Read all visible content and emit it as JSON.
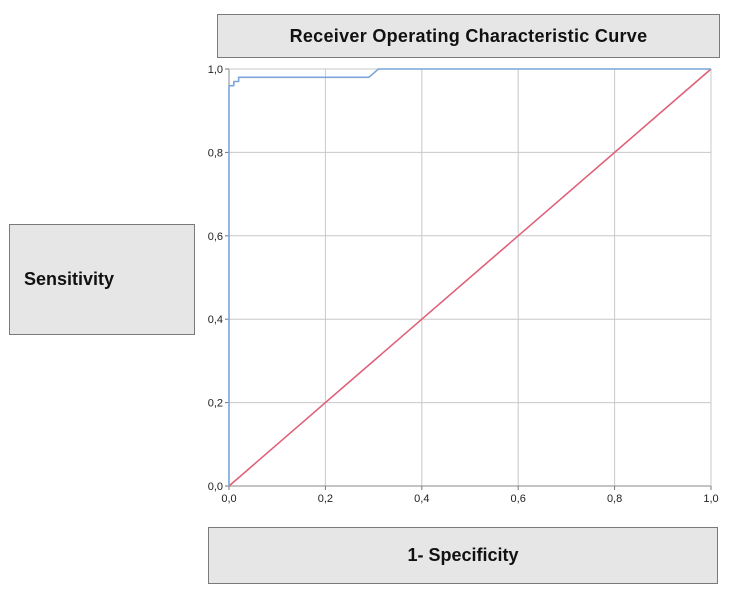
{
  "chart_data": {
    "type": "line",
    "title": "Receiver Operating Characteristic Curve",
    "xlabel": "1- Specificity",
    "ylabel": "Sensitivity",
    "xlim": [
      0,
      1
    ],
    "ylim": [
      0,
      1
    ],
    "x_ticks": [
      "0,0",
      "0,2",
      "0,4",
      "0,6",
      "0,8",
      "1,0"
    ],
    "y_ticks": [
      "0,0",
      "0,2",
      "0,4",
      "0,6",
      "0,8",
      "1,0"
    ],
    "grid": true,
    "series": [
      {
        "color": "#7aa6d8",
        "points": [
          [
            0,
            0
          ],
          [
            0,
            0.96
          ],
          [
            0.01,
            0.96
          ],
          [
            0.01,
            0.97
          ],
          [
            0.02,
            0.97
          ],
          [
            0.02,
            0.98
          ],
          [
            0.05,
            0.98
          ],
          [
            0.29,
            0.98
          ],
          [
            0.3,
            0.99
          ],
          [
            0.31,
            1.0
          ],
          [
            1.0,
            1.0
          ]
        ]
      },
      {
        "color": "#e0607a",
        "points": [
          [
            0,
            0
          ],
          [
            1,
            1
          ]
        ]
      }
    ]
  }
}
